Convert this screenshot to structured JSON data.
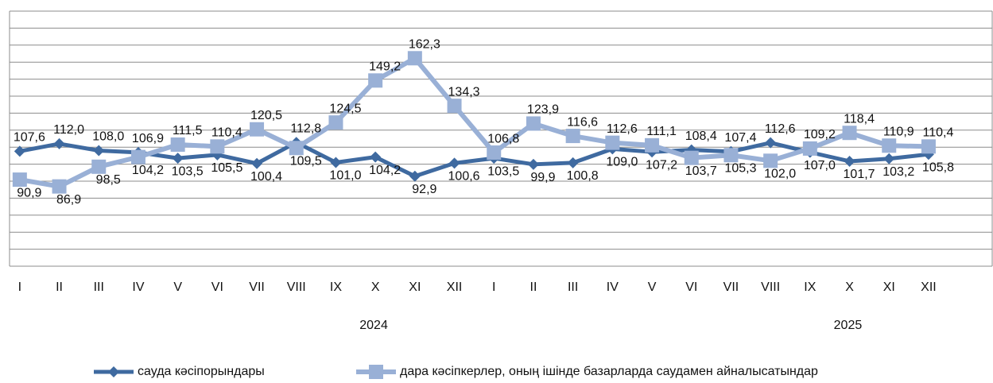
{
  "chart_data": {
    "type": "line",
    "categories": [
      "I",
      "II",
      "III",
      "IV",
      "V",
      "VI",
      "VII",
      "VIII",
      "IX",
      "X",
      "XI",
      "XII",
      "I",
      "II",
      "III",
      "IV",
      "V",
      "VI",
      "VII",
      "VIII",
      "IX",
      "X",
      "XI",
      "XII"
    ],
    "years": [
      "2024",
      "2025"
    ],
    "ylim": [
      40,
      190
    ],
    "yticks": [
      40,
      50,
      60,
      70,
      80,
      90,
      100,
      110,
      120,
      130,
      140,
      150,
      160,
      170,
      180,
      190
    ],
    "grid": true,
    "legend": "bottom",
    "series": [
      {
        "name": "сауда кәсіпорындары",
        "color": "#3f6aa0",
        "marker": "diamond",
        "values": [
          107.6,
          112.0,
          108.0,
          106.9,
          103.5,
          105.5,
          100.4,
          112.8,
          101.0,
          104.2,
          92.9,
          100.6,
          103.5,
          99.9,
          100.8,
          109.0,
          107.2,
          108.4,
          107.4,
          112.6,
          107.0,
          101.7,
          103.2,
          105.8
        ],
        "value_labels": [
          "107,6",
          "112,0",
          "108,0",
          "106,9",
          "103,5",
          "105,5",
          "100,4",
          "112,8",
          "101,0",
          "104,2",
          "92,9",
          "100,6",
          "103,5",
          "99,9",
          "100,8",
          "109,0",
          "107,2",
          "108,4",
          "107,4",
          "112,6",
          "107,0",
          "101,7",
          "103,2",
          "105,8"
        ]
      },
      {
        "name": "дара кәсіпкерлер, оның ішінде базарларда саудамен айналысатындар",
        "color": "#99b0d6",
        "marker": "square",
        "values": [
          90.9,
          86.9,
          98.5,
          104.2,
          111.5,
          110.4,
          120.5,
          109.5,
          124.5,
          149.2,
          162.3,
          134.3,
          106.8,
          123.9,
          116.6,
          112.6,
          111.1,
          103.7,
          105.3,
          102.0,
          109.2,
          118.4,
          110.9,
          110.4
        ],
        "value_labels": [
          "90,9",
          "86,9",
          "98,5",
          "104,2",
          "111,5",
          "110,4",
          "120,5",
          "109,5",
          "124,5",
          "149,2",
          "162,3",
          "134,3",
          "106,8",
          "123,9",
          "116,6",
          "112,6",
          "111,1",
          "103,7",
          "105,3",
          "102,0",
          "109,2",
          "118,4",
          "110,9",
          "110,4"
        ]
      }
    ]
  }
}
